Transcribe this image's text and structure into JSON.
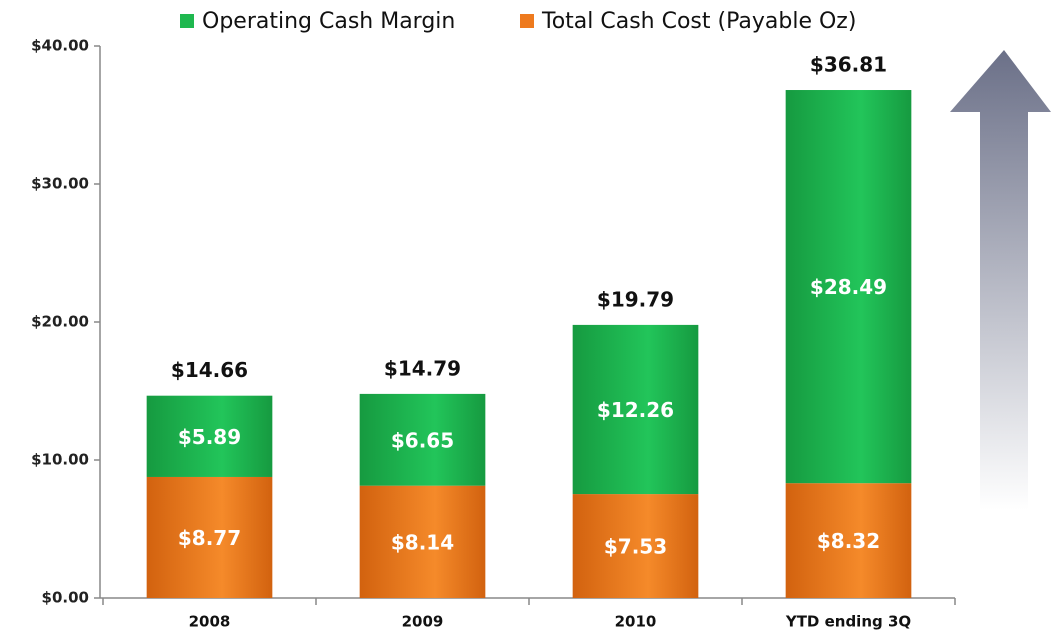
{
  "chart_data": {
    "type": "stacked_bar",
    "categories": [
      "2008",
      "2009",
      "2010",
      "YTD ending 3Q"
    ],
    "series": [
      {
        "name": "Total Cash Cost (Payable Oz)",
        "color": "#ee7a1e",
        "values": [
          8.77,
          8.14,
          7.53,
          8.32
        ],
        "value_labels": [
          "$8.77",
          "$8.14",
          "$7.53",
          "$8.32"
        ]
      },
      {
        "name": "Operating Cash Margin",
        "color": "#1fb84f",
        "values": [
          5.89,
          6.65,
          12.26,
          28.49
        ],
        "value_labels": [
          "$5.89",
          "$6.65",
          "$12.26",
          "$28.49"
        ]
      }
    ],
    "totals": {
      "values": [
        14.66,
        14.79,
        19.79,
        36.81
      ],
      "value_labels": [
        "$14.66",
        "$14.79",
        "$19.79",
        "$36.81"
      ]
    },
    "ylim": [
      0,
      40
    ],
    "yticks": [
      {
        "value": 0,
        "label": "$0.00"
      },
      {
        "value": 10,
        "label": "$10.00"
      },
      {
        "value": 20,
        "label": "$20.00"
      },
      {
        "value": 30,
        "label": "$30.00"
      },
      {
        "value": 40,
        "label": "$40.00"
      }
    ],
    "grid": false
  }
}
